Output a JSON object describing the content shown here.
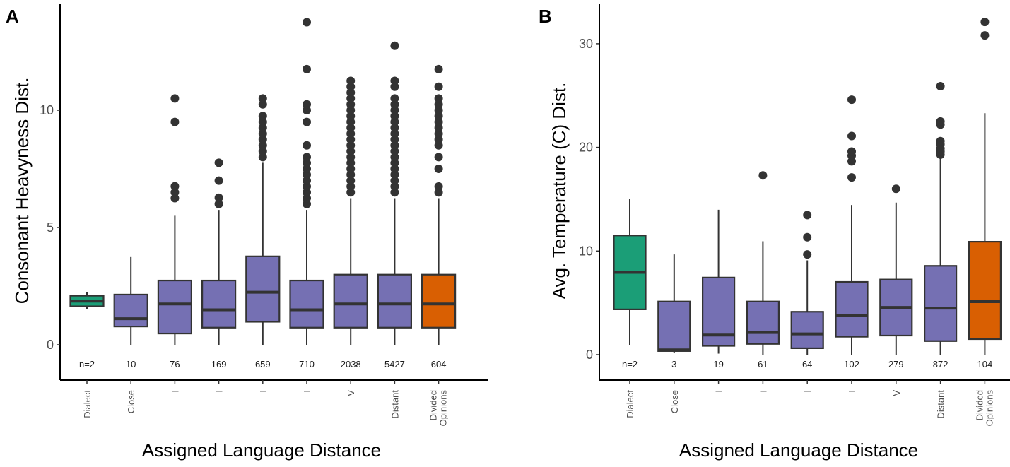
{
  "colors": {
    "dialect": "#1b9e77",
    "middle": "#7570b3",
    "divided": "#d95f02",
    "ink": "#333333"
  },
  "chart_data": [
    {
      "panel_label": "A",
      "type": "box",
      "ylabel": "Consonant Heavyness Dist.",
      "xlabel": "Assigned Language Distance",
      "ylim": [
        -1.5,
        14.5
      ],
      "yticks": [
        0,
        5,
        10
      ],
      "categories": [
        "Dialect",
        "Close",
        "I",
        "I",
        "I",
        "I",
        "V",
        "Distant",
        [
          "Divided",
          "Opinions"
        ]
      ],
      "n_labels": [
        "n=2",
        "10",
        "76",
        "169",
        "659",
        "710",
        "2038",
        "5427",
        "604"
      ],
      "fill": [
        "dialect",
        "middle",
        "middle",
        "middle",
        "middle",
        "middle",
        "middle",
        "middle",
        "divided"
      ],
      "boxes": [
        {
          "low": 1.52,
          "q1": 1.64,
          "median": 1.86,
          "q3": 2.09,
          "high": 2.24,
          "outliers": []
        },
        {
          "low": 0,
          "q1": 0.78,
          "median": 1.11,
          "q3": 2.14,
          "high": 3.74,
          "outliers": []
        },
        {
          "low": 0,
          "q1": 0.48,
          "median": 1.74,
          "q3": 2.74,
          "high": 5.5,
          "outliers": [
            6.25,
            6.5,
            6.76,
            9.5,
            10.5
          ]
        },
        {
          "low": 0,
          "q1": 0.73,
          "median": 1.49,
          "q3": 2.74,
          "high": 5.75,
          "outliers": [
            6.0,
            6.27,
            7.0,
            7.76
          ]
        },
        {
          "low": 0,
          "q1": 0.98,
          "median": 2.24,
          "q3": 3.77,
          "high": 7.76,
          "outliers": [
            8.0,
            8.25,
            8.5,
            8.75,
            9.0,
            9.25,
            9.5,
            9.75,
            10.25,
            10.5
          ]
        },
        {
          "low": 0,
          "q1": 0.73,
          "median": 1.49,
          "q3": 2.74,
          "high": 5.75,
          "outliers": [
            6.0,
            6.25,
            6.5,
            6.75,
            7.0,
            7.25,
            7.5,
            7.75,
            8.0,
            8.5,
            9.5,
            10.0,
            10.25,
            11.75,
            13.75
          ]
        },
        {
          "low": 0,
          "q1": 0.73,
          "median": 1.74,
          "q3": 2.99,
          "high": 6.25,
          "outliers": [
            6.5,
            6.75,
            7.0,
            7.25,
            7.5,
            7.75,
            8.0,
            8.25,
            8.5,
            8.75,
            9.0,
            9.25,
            9.5,
            9.75,
            10.0,
            10.25,
            10.5,
            10.75,
            11.0,
            11.25
          ]
        },
        {
          "low": 0,
          "q1": 0.73,
          "median": 1.74,
          "q3": 2.99,
          "high": 6.25,
          "outliers": [
            6.5,
            6.75,
            7.0,
            7.25,
            7.5,
            7.75,
            8.0,
            8.25,
            8.5,
            8.75,
            9.0,
            9.25,
            9.5,
            9.75,
            10.0,
            10.25,
            10.5,
            11.0,
            11.25,
            12.75
          ]
        },
        {
          "low": 0,
          "q1": 0.73,
          "median": 1.74,
          "q3": 2.99,
          "high": 6.25,
          "outliers": [
            6.5,
            6.75,
            7.5,
            8.0,
            8.5,
            8.75,
            9.0,
            9.25,
            9.5,
            9.75,
            10.0,
            10.25,
            10.5,
            11.0,
            11.75
          ]
        }
      ]
    },
    {
      "panel_label": "B",
      "type": "box",
      "ylabel": "Avg. Temperature (C) Dist.",
      "xlabel": "Assigned Language Distance",
      "ylim": [
        -2.4,
        33.5
      ],
      "yticks": [
        0,
        10,
        20,
        30
      ],
      "categories": [
        "Dialect",
        "Close",
        "I",
        "I",
        "I",
        "I",
        "V",
        "Distant",
        [
          "Divided",
          "Opinions"
        ]
      ],
      "n_labels": [
        "n=2",
        "3",
        "19",
        "61",
        "64",
        "102",
        "279",
        "872",
        "104"
      ],
      "fill": [
        "dialect",
        "middle",
        "middle",
        "middle",
        "middle",
        "middle",
        "middle",
        "middle",
        "divided"
      ],
      "boxes": [
        {
          "low": 0.92,
          "q1": 4.37,
          "median": 7.94,
          "q3": 11.5,
          "high": 15.0,
          "outliers": []
        },
        {
          "low": 0.16,
          "q1": 0.35,
          "median": 0.46,
          "q3": 5.13,
          "high": 9.67,
          "outliers": []
        },
        {
          "low": 0.1,
          "q1": 0.85,
          "median": 1.89,
          "q3": 7.44,
          "high": 13.98,
          "outliers": []
        },
        {
          "low": 0,
          "q1": 1.04,
          "median": 2.14,
          "q3": 5.13,
          "high": 10.94,
          "outliers": [
            17.3
          ]
        },
        {
          "low": 0,
          "q1": 0.62,
          "median": 2.0,
          "q3": 4.14,
          "high": 9.1,
          "outliers": [
            9.67,
            11.33,
            13.47
          ]
        },
        {
          "low": 0,
          "q1": 1.73,
          "median": 3.75,
          "q3": 7.02,
          "high": 14.44,
          "outliers": [
            17.1,
            18.65,
            19.2,
            19.6,
            21.1,
            24.6
          ]
        },
        {
          "low": 0,
          "q1": 1.84,
          "median": 4.56,
          "q3": 7.25,
          "high": 14.67,
          "outliers": [
            16.0
          ]
        },
        {
          "low": 0,
          "q1": 1.31,
          "median": 4.49,
          "q3": 8.57,
          "high": 19.0,
          "outliers": [
            19.3,
            19.6,
            19.9,
            20.3,
            20.6,
            22.2,
            22.5,
            25.9
          ]
        },
        {
          "low": 0,
          "q1": 1.5,
          "median": 5.11,
          "q3": 10.9,
          "high": 23.3,
          "outliers": [
            30.8,
            32.1
          ]
        }
      ]
    }
  ]
}
